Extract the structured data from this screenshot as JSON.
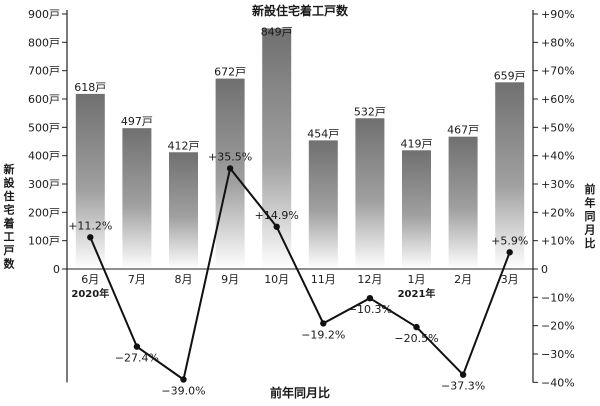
{
  "chart_data": {
    "type": "bar+line",
    "title": "新設住宅着工戸数",
    "bottom_title": "前年同月比",
    "ylabel_left": "新設住宅着工戸数",
    "ylabel_right": "前年同月比",
    "categories": [
      "6月",
      "7月",
      "8月",
      "9月",
      "10月",
      "11月",
      "12月",
      "1月",
      "2月",
      "3月"
    ],
    "year_labels": [
      {
        "category": "6月",
        "text": "2020年"
      },
      {
        "category": "1月",
        "text": "2021年"
      }
    ],
    "series": [
      {
        "name": "新設住宅着工戸数",
        "type": "bar",
        "axis": "left",
        "values": [
          618,
          497,
          412,
          672,
          849,
          454,
          532,
          419,
          467,
          659
        ],
        "labels": [
          "618戸",
          "497戸",
          "412戸",
          "672戸",
          "849戸",
          "454戸",
          "532戸",
          "419戸",
          "467戸",
          "659戸"
        ]
      },
      {
        "name": "前年同月比",
        "type": "line",
        "axis": "right",
        "values": [
          11.2,
          -27.4,
          -39.0,
          35.5,
          14.9,
          -19.2,
          -10.3,
          -20.5,
          -37.3,
          5.9
        ],
        "labels": [
          "+11.2%",
          "−27.4%",
          "−39.0%",
          "+35.5%",
          "+14.9%",
          "−19.2%",
          "−10.3%",
          "−20.5%",
          "−37.3%",
          "+5.9%"
        ]
      }
    ],
    "left_axis": {
      "range": [
        0,
        900
      ],
      "ticks": [
        0,
        100,
        200,
        300,
        400,
        500,
        600,
        700,
        800,
        900
      ],
      "tick_labels": [
        "0",
        "100戸",
        "200戸",
        "300戸",
        "400戸",
        "500戸",
        "600戸",
        "700戸",
        "800戸",
        "900戸"
      ]
    },
    "right_axis": {
      "range": [
        -40,
        90
      ],
      "ticks": [
        -40,
        -30,
        -20,
        -10,
        0,
        10,
        20,
        30,
        40,
        50,
        60,
        70,
        80,
        90
      ],
      "tick_labels": [
        "−40%",
        "−30%",
        "−20%",
        "−10%",
        "0",
        "+10%",
        "+20%",
        "+30%",
        "+40%",
        "+50%",
        "+60%",
        "+70%",
        "+80%",
        "+90%"
      ]
    },
    "colors": {
      "bar_top": "#707070",
      "bar_bottom": "#ffffff",
      "line": "#111111",
      "axis": "#222222"
    }
  }
}
